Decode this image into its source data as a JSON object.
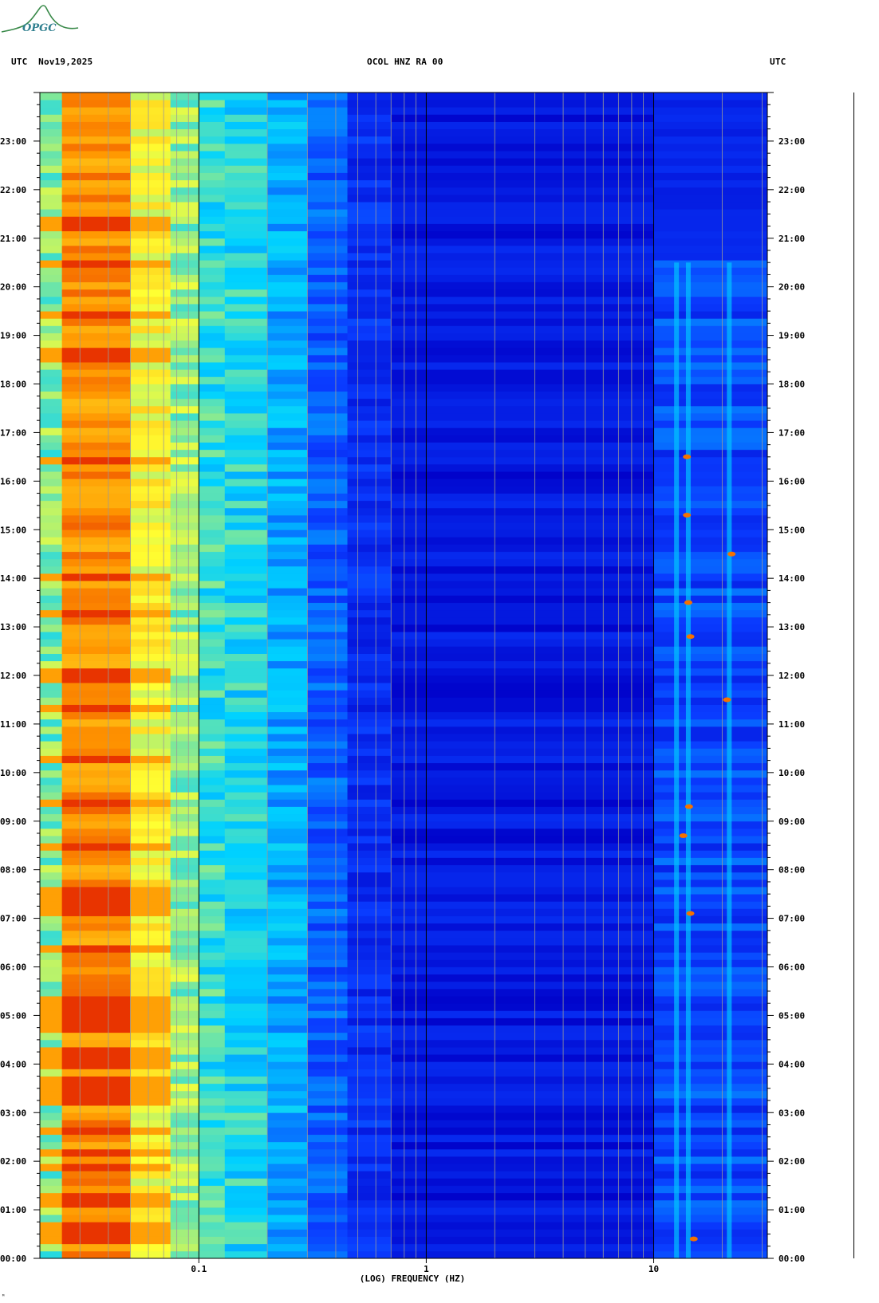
{
  "header": {
    "left_label": "UTC",
    "date": "Nov19,2025",
    "title": "OCOL HNZ RA 00",
    "right_label": "UTC"
  },
  "logo": {
    "text": "OPGC"
  },
  "chart_data": {
    "type": "heatmap",
    "xlabel": "(LOG) FREQUENCY (HZ)",
    "x_scale": "log",
    "xlim": [
      0.02,
      31.6
    ],
    "x_ticks": [
      {
        "value": 0.1,
        "label": "0.1"
      },
      {
        "value": 1,
        "label": "1"
      },
      {
        "value": 10,
        "label": "10"
      }
    ],
    "y_unit": "UTC hour",
    "ylim": [
      0,
      24
    ],
    "y_ticks": [
      {
        "hour": 0,
        "label": "00:00"
      },
      {
        "hour": 1,
        "label": "01:00"
      },
      {
        "hour": 2,
        "label": "02:00"
      },
      {
        "hour": 3,
        "label": "03:00"
      },
      {
        "hour": 4,
        "label": "04:00"
      },
      {
        "hour": 5,
        "label": "05:00"
      },
      {
        "hour": 6,
        "label": "06:00"
      },
      {
        "hour": 7,
        "label": "07:00"
      },
      {
        "hour": 8,
        "label": "08:00"
      },
      {
        "hour": 9,
        "label": "09:00"
      },
      {
        "hour": 10,
        "label": "10:00"
      },
      {
        "hour": 11,
        "label": "11:00"
      },
      {
        "hour": 12,
        "label": "12:00"
      },
      {
        "hour": 13,
        "label": "13:00"
      },
      {
        "hour": 14,
        "label": "14:00"
      },
      {
        "hour": 15,
        "label": "15:00"
      },
      {
        "hour": 16,
        "label": "16:00"
      },
      {
        "hour": 17,
        "label": "17:00"
      },
      {
        "hour": 18,
        "label": "18:00"
      },
      {
        "hour": 19,
        "label": "19:00"
      },
      {
        "hour": 20,
        "label": "20:00"
      },
      {
        "hour": 21,
        "label": "21:00"
      },
      {
        "hour": 22,
        "label": "22:00"
      },
      {
        "hour": 23,
        "label": "23:00"
      }
    ],
    "colormap": [
      "#0000c8",
      "#0a3cff",
      "#00d2ff",
      "#ffff32",
      "#ff9600",
      "#dc0000"
    ],
    "frequency_bands": [
      {
        "f_min": 0.02,
        "f_max": 0.025,
        "level": 0.5
      },
      {
        "f_min": 0.025,
        "f_max": 0.05,
        "level": 0.8
      },
      {
        "f_min": 0.05,
        "f_max": 0.075,
        "level": 0.62
      },
      {
        "f_min": 0.075,
        "f_max": 0.1,
        "level": 0.52
      },
      {
        "f_min": 0.1,
        "f_max": 0.13,
        "level": 0.44
      },
      {
        "f_min": 0.13,
        "f_max": 0.2,
        "level": 0.42
      },
      {
        "f_min": 0.2,
        "f_max": 0.3,
        "level": 0.34
      },
      {
        "f_min": 0.3,
        "f_max": 0.45,
        "level": 0.24
      },
      {
        "f_min": 0.45,
        "f_max": 0.7,
        "level": 0.15
      },
      {
        "f_min": 0.7,
        "f_max": 10,
        "level": 0.08
      },
      {
        "f_min": 10,
        "f_max": 31.6,
        "level": 0.17
      }
    ],
    "strong_low_freq_hours": [
      0.4,
      0.5,
      0.7,
      1.2,
      1.9,
      2.2,
      2.6,
      3.3,
      3.6,
      4.0,
      4.2,
      4.8,
      5.1,
      5.3,
      6.4,
      7.2,
      7.4,
      7.6,
      8.5,
      9.4,
      10.3,
      11.3,
      12.0,
      13.3,
      14.0,
      16.4,
      18.6,
      19.4,
      20.5,
      21.3
    ],
    "activity_hours": [
      [
        0,
        20.5
      ]
    ],
    "persistent_lines_hz": [
      12.6,
      14.2,
      21.5
    ],
    "hotspots": [
      {
        "hour": 13.5,
        "freq": 14.2
      },
      {
        "hour": 14.5,
        "freq": 22.0
      },
      {
        "hour": 11.5,
        "freq": 21.0
      },
      {
        "hour": 8.7,
        "freq": 13.5
      },
      {
        "hour": 7.1,
        "freq": 14.5
      },
      {
        "hour": 12.8,
        "freq": 14.5
      },
      {
        "hour": 15.3,
        "freq": 14.0
      },
      {
        "hour": 9.3,
        "freq": 14.3
      },
      {
        "hour": 0.4,
        "freq": 15.0
      },
      {
        "hour": 16.5,
        "freq": 14.0
      }
    ]
  },
  "footer": {
    "corner_mark": "ᴹ"
  }
}
